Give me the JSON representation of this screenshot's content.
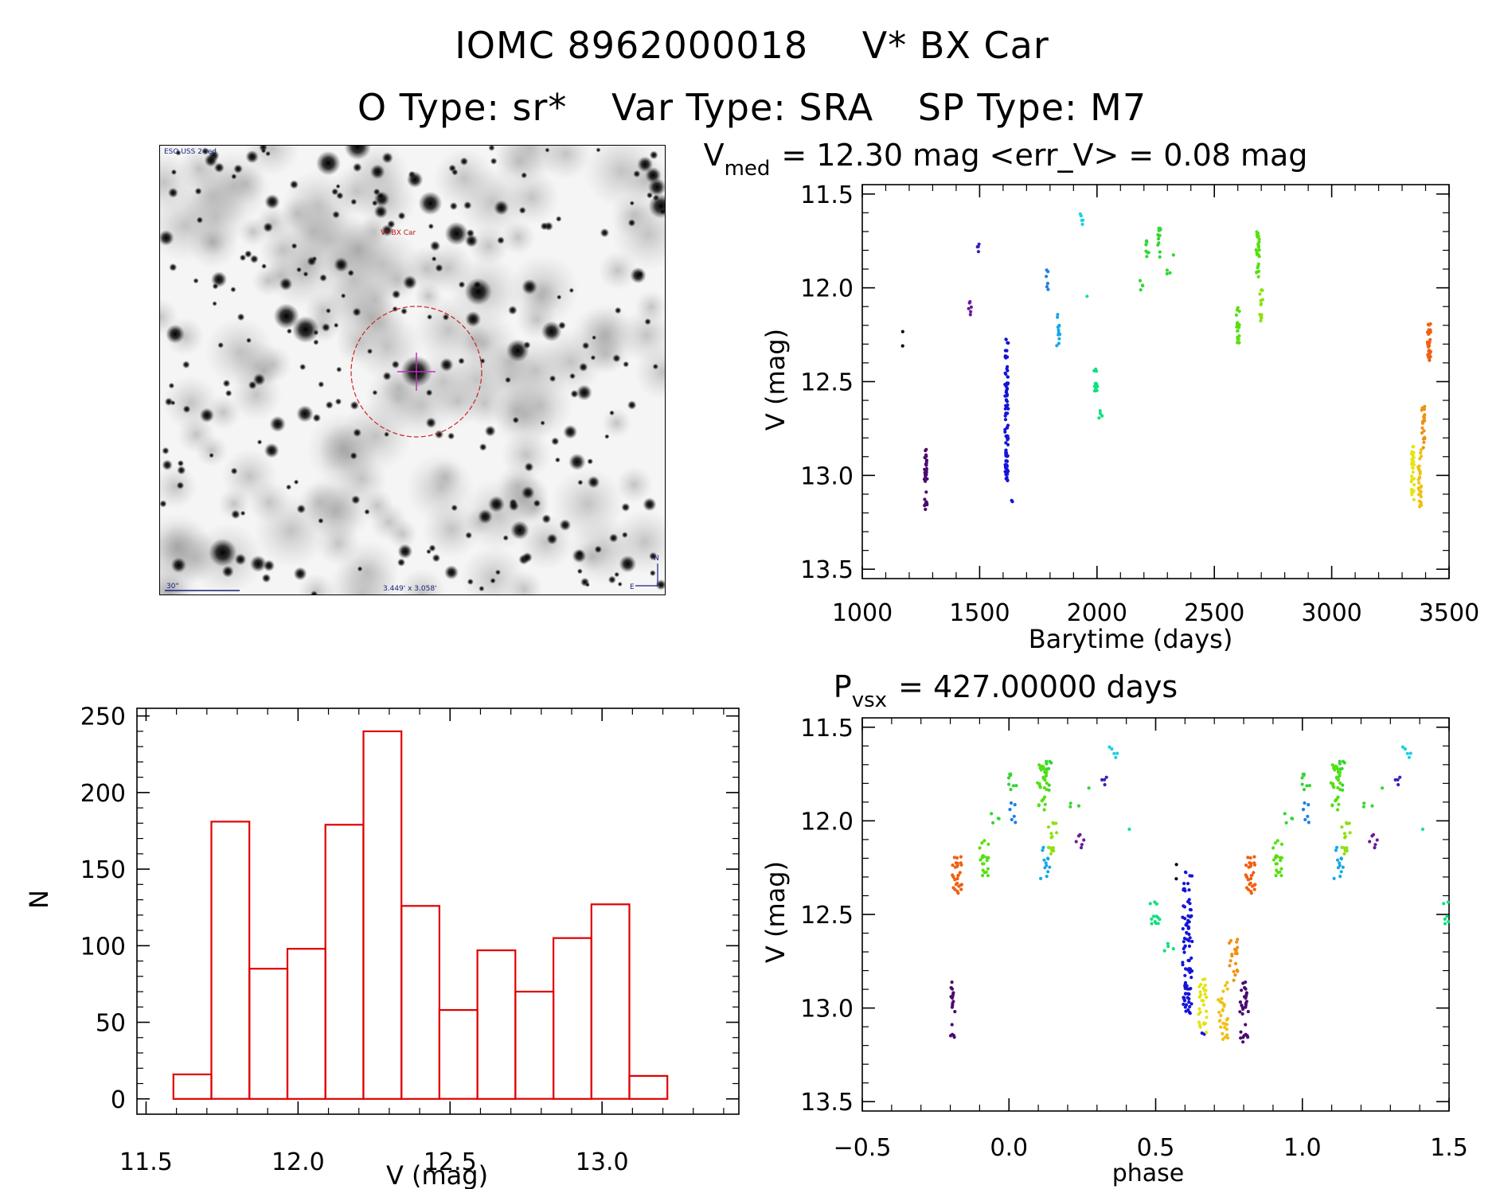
{
  "header": {
    "id": "IOMC 8962000018",
    "name": "V* BX Car",
    "otype": "O Type: sr*",
    "vartype": "Var Type: SRA",
    "sptype": "SP Type: M7"
  },
  "finder": {
    "survey_label": "ESO USS 2-red",
    "target_label": "V* BX Car",
    "scale_label": "30\"",
    "fov_label": "3.449' x 3.058'",
    "north_label": "N",
    "east_label": "E"
  },
  "chart_data": [
    {
      "id": "lightcurve",
      "type": "scatter",
      "title_main": "V",
      "title_sub": "med",
      "title_rest": "= 12.30 mag <err_V> = 0.08 mag",
      "xlabel": "Barytime (days)",
      "ylabel": "V (mag)",
      "xlim": [
        1000,
        3500
      ],
      "ylim": [
        13.55,
        11.45
      ],
      "xticks": [
        1000,
        1500,
        2000,
        2500,
        3000,
        3500
      ],
      "xtick_labels": [
        "1000",
        "1500",
        "2000",
        "2500",
        "3000",
        "3500"
      ],
      "yticks": [
        11.5,
        12.0,
        12.5,
        13.0,
        13.5
      ],
      "ytick_labels": [
        "11.5",
        "12.0",
        "12.5",
        "13.0",
        "13.5"
      ],
      "groups": [
        {
          "x": 1170,
          "ymin": 12.2,
          "ymax": 12.31,
          "n": 2,
          "color": "#000000"
        },
        {
          "x": 1270,
          "ymin": 12.86,
          "ymax": 13.2,
          "n": 30,
          "color": "#4b0a6e"
        },
        {
          "x": 1460,
          "ymin": 12.05,
          "ymax": 12.16,
          "n": 6,
          "color": "#6a1b9a"
        },
        {
          "x": 1495,
          "ymin": 11.75,
          "ymax": 11.81,
          "n": 4,
          "color": "#3a20b8"
        },
        {
          "x": 1615,
          "ymin": 12.27,
          "ymax": 13.03,
          "n": 90,
          "color": "#1414d8"
        },
        {
          "x": 1640,
          "ymin": 13.12,
          "ymax": 13.16,
          "n": 2,
          "color": "#1414d8"
        },
        {
          "x": 1790,
          "ymin": 11.9,
          "ymax": 12.02,
          "n": 6,
          "color": "#1e7fe0"
        },
        {
          "x": 1835,
          "ymin": 12.12,
          "ymax": 12.31,
          "n": 12,
          "color": "#17a8e8"
        },
        {
          "x": 1935,
          "ymin": 11.59,
          "ymax": 11.69,
          "n": 5,
          "color": "#1ad0e0"
        },
        {
          "x": 1960,
          "ymin": 12.04,
          "ymax": 12.05,
          "n": 1,
          "color": "#14e0a0"
        },
        {
          "x": 1995,
          "ymin": 12.43,
          "ymax": 12.55,
          "n": 12,
          "color": "#10e080"
        },
        {
          "x": 2015,
          "ymin": 12.62,
          "ymax": 12.7,
          "n": 4,
          "color": "#10e080"
        },
        {
          "x": 2190,
          "ymin": 11.96,
          "ymax": 12.03,
          "n": 4,
          "color": "#33d633"
        },
        {
          "x": 2215,
          "ymin": 11.74,
          "ymax": 11.85,
          "n": 8,
          "color": "#33d633"
        },
        {
          "x": 2265,
          "ymin": 11.68,
          "ymax": 11.87,
          "n": 12,
          "color": "#33d633"
        },
        {
          "x": 2305,
          "ymin": 11.88,
          "ymax": 11.93,
          "n": 3,
          "color": "#33d633"
        },
        {
          "x": 2330,
          "ymin": 11.82,
          "ymax": 11.83,
          "n": 1,
          "color": "#33d633"
        },
        {
          "x": 2600,
          "ymin": 12.1,
          "ymax": 12.3,
          "n": 20,
          "color": "#55e010"
        },
        {
          "x": 2685,
          "ymin": 11.7,
          "ymax": 11.96,
          "n": 25,
          "color": "#55e010"
        },
        {
          "x": 2700,
          "ymin": 12.01,
          "ymax": 12.18,
          "n": 14,
          "color": "#8ee010"
        },
        {
          "x": 3345,
          "ymin": 12.84,
          "ymax": 13.13,
          "n": 30,
          "color": "#e4e410"
        },
        {
          "x": 3375,
          "ymin": 12.86,
          "ymax": 13.17,
          "n": 30,
          "color": "#f0c010"
        },
        {
          "x": 3390,
          "ymin": 12.62,
          "ymax": 12.86,
          "n": 20,
          "color": "#f09010"
        },
        {
          "x": 3415,
          "ymin": 12.19,
          "ymax": 12.4,
          "n": 30,
          "color": "#f06010"
        }
      ]
    },
    {
      "id": "histogram",
      "type": "bar",
      "xlabel": "V (mag)",
      "ylabel": "N",
      "xlim": [
        11.47,
        13.45
      ],
      "ylim": [
        -10,
        255
      ],
      "bin_width": 0.125,
      "bin_starts": [
        11.59,
        11.715,
        11.84,
        11.965,
        12.09,
        12.215,
        12.34,
        12.465,
        12.59,
        12.715,
        12.84,
        12.965,
        13.09
      ],
      "values": [
        16,
        181,
        85,
        98,
        179,
        240,
        126,
        58,
        97,
        70,
        105,
        127,
        15
      ],
      "xticks": [
        11.5,
        12.0,
        12.5,
        13.0
      ],
      "xtick_labels": [
        "11.5",
        "12.0",
        "12.5",
        "13.0"
      ],
      "yticks": [
        0,
        50,
        100,
        150,
        200,
        250
      ],
      "ytick_labels": [
        "0",
        "50",
        "100",
        "150",
        "200",
        "250"
      ],
      "color": "#e00000"
    },
    {
      "id": "phased",
      "type": "scatter",
      "title_main": "P",
      "title_sub": "vsx",
      "title_rest": "= 427.00000 days",
      "xlabel": "phase",
      "ylabel": "V (mag)",
      "xlim": [
        -0.5,
        1.5
      ],
      "ylim": [
        13.55,
        11.45
      ],
      "period": 427.0,
      "epoch": 1270,
      "phase_shift": 0.2,
      "xticks": [
        -0.5,
        0.0,
        0.5,
        1.0,
        1.5
      ],
      "xtick_labels": [
        "−0.5",
        "0.0",
        "0.5",
        "1.0",
        "1.5"
      ],
      "yticks": [
        11.5,
        12.0,
        12.5,
        13.0,
        13.5
      ],
      "ytick_labels": [
        "11.5",
        "12.0",
        "12.5",
        "13.0",
        "13.5"
      ]
    }
  ]
}
